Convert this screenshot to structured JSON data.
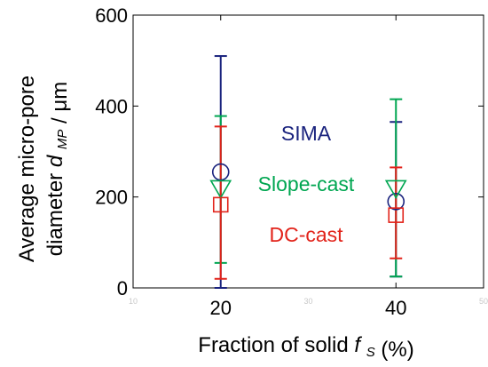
{
  "chart_data": {
    "type": "scatter",
    "xlabel": "Fraction of solid",
    "xlabel_symbol": "f",
    "xlabel_sub": "S",
    "xlabel_unit": "(%)",
    "ylabel_line1": "Average micro-pore",
    "ylabel_line2": "diameter",
    "ylabel_symbol": "d",
    "ylabel_sub": "MP",
    "ylabel_unit": "/ μm",
    "xlim": [
      10,
      50
    ],
    "ylim": [
      0,
      600
    ],
    "x_major_ticks": [
      20,
      40
    ],
    "x_minor_ticks": [
      10,
      30,
      50
    ],
    "y_ticks": [
      0,
      200,
      400,
      600
    ],
    "grid": false,
    "legend_placement": "inside-center",
    "series": [
      {
        "name": "SIMA",
        "marker": "circle",
        "color": "#1a237e",
        "points": [
          {
            "x": 20,
            "y": 255,
            "err_low": 0,
            "err_high": 510
          },
          {
            "x": 40,
            "y": 190,
            "err_low": 25,
            "err_high": 365
          }
        ]
      },
      {
        "name": "Slope-cast",
        "marker": "triangle-down",
        "color": "#00a651",
        "points": [
          {
            "x": 20,
            "y": 220,
            "err_low": 55,
            "err_high": 378
          },
          {
            "x": 40,
            "y": 220,
            "err_low": 25,
            "err_high": 415
          }
        ]
      },
      {
        "name": "DC-cast",
        "marker": "square",
        "color": "#e2231a",
        "points": [
          {
            "x": 20,
            "y": 183,
            "err_low": 20,
            "err_high": 355
          },
          {
            "x": 40,
            "y": 160,
            "err_low": 65,
            "err_high": 265
          }
        ]
      }
    ]
  }
}
